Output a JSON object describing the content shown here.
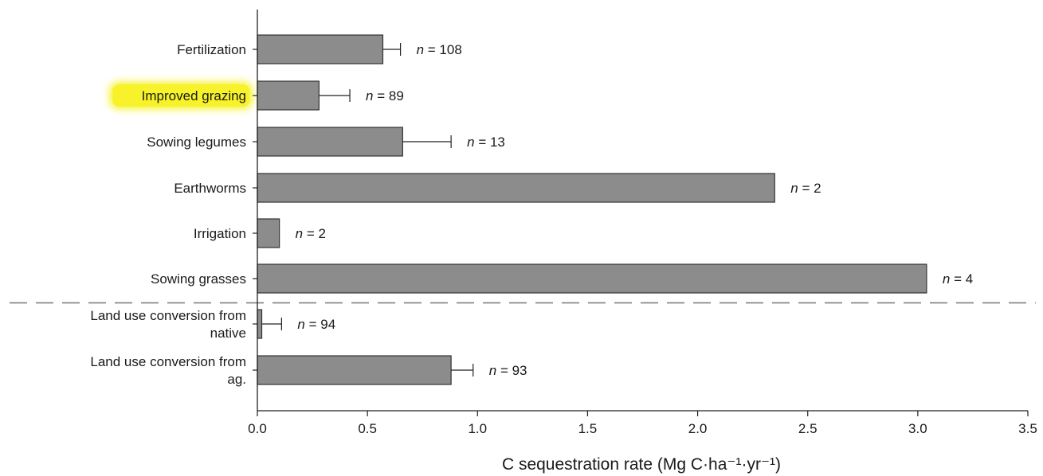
{
  "chart_data": {
    "type": "bar",
    "orientation": "horizontal",
    "xlabel": "C sequestration rate (Mg C·ha⁻¹·yr⁻¹)",
    "ylabel": "",
    "xlim": [
      0,
      3.5
    ],
    "xticks": [
      "0.0",
      "0.5",
      "1.0",
      "1.5",
      "2.0",
      "2.5",
      "3.0",
      "3.5"
    ],
    "grid": false,
    "bar_color": "#8c8c8c",
    "highlight_color": "#f7f229",
    "highlighted_category": "Improved grazing",
    "group_separator": "dashed line between Sowing grasses and Land use conversion from native",
    "categories": [
      {
        "label": "Fertilization",
        "value": 0.57,
        "error": 0.08,
        "n_label": "n = 108"
      },
      {
        "label": "Improved grazing",
        "value": 0.28,
        "error": 0.14,
        "n_label": "n = 89"
      },
      {
        "label": "Sowing legumes",
        "value": 0.66,
        "error": 0.22,
        "n_label": "n = 13"
      },
      {
        "label": "Earthworms",
        "value": 2.35,
        "error": 0,
        "n_label": "n = 2"
      },
      {
        "label": "Irrigation",
        "value": 0.1,
        "error": 0,
        "n_label": "n = 2"
      },
      {
        "label": "Sowing grasses",
        "value": 3.04,
        "error": 0,
        "n_label": "n = 4"
      },
      {
        "label": "Land use conversion from native",
        "label_lines": [
          "Land use conversion from",
          "native"
        ],
        "value": 0.02,
        "error": 0.09,
        "n_label": "n = 94"
      },
      {
        "label": "Land use conversion from ag.",
        "label_lines": [
          "Land use conversion from",
          "ag."
        ],
        "value": 0.88,
        "error": 0.1,
        "n_label": "n = 93"
      }
    ]
  }
}
